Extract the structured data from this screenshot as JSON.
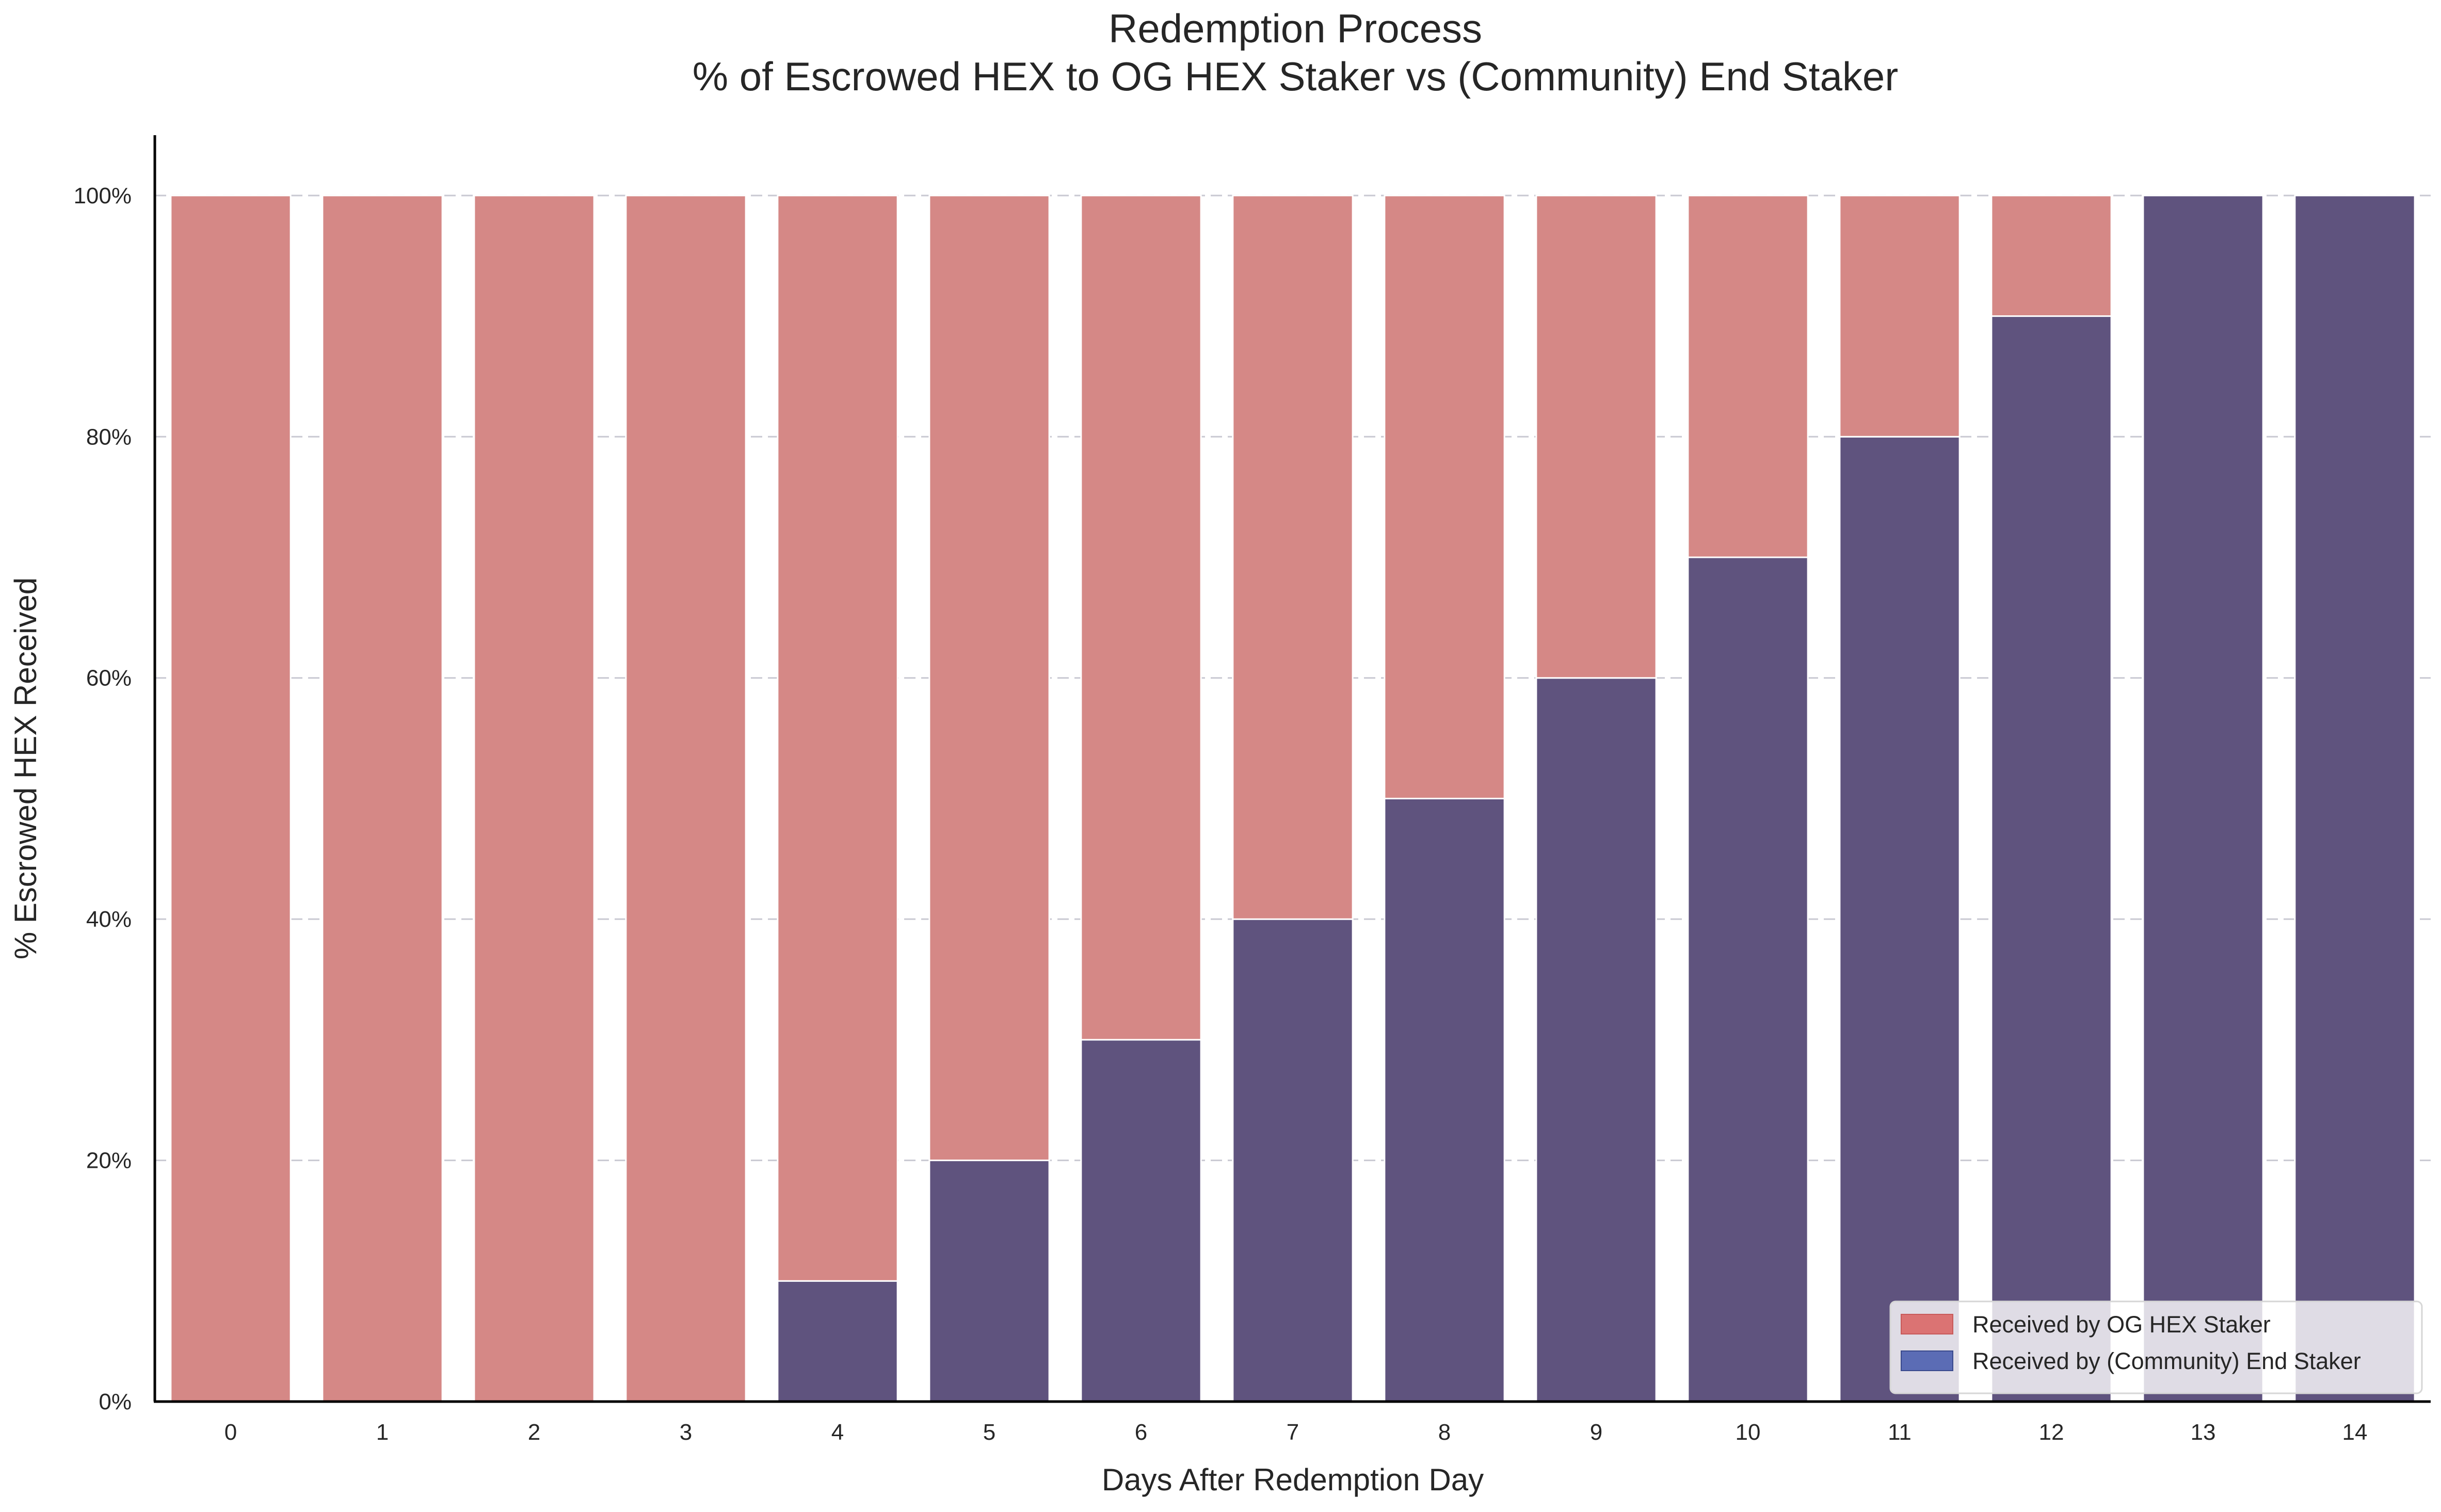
{
  "chart_data": {
    "type": "bar",
    "stacked": true,
    "title": "Redemption Process",
    "subtitle": "% of Escrowed HEX to OG HEX Staker vs (Community) End Staker",
    "xlabel": "Days After Redemption Day",
    "ylabel": "% Escrowed HEX Received",
    "categories": [
      "0",
      "1",
      "2",
      "3",
      "4",
      "5",
      "6",
      "7",
      "8",
      "9",
      "10",
      "11",
      "12",
      "13",
      "14"
    ],
    "ylim": [
      0,
      105
    ],
    "yticks": [
      0,
      20,
      40,
      60,
      80,
      100
    ],
    "ytick_labels": [
      "0%",
      "20%",
      "40%",
      "60%",
      "80%",
      "100%"
    ],
    "grid": "horizontal dashed",
    "legend_position": "bottom-right",
    "series": [
      {
        "name": "Received by (Community) End Staker",
        "color": "#5f537e",
        "legend_color": "#5b6cb5",
        "values": [
          0,
          0,
          0,
          0,
          10,
          20,
          30,
          40,
          50,
          60,
          70,
          80,
          90,
          100,
          100
        ]
      },
      {
        "name": "Received by OG HEX Staker",
        "color": "#d58886",
        "legend_color": "#db7373",
        "values": [
          100,
          100,
          100,
          100,
          90,
          80,
          70,
          60,
          50,
          40,
          30,
          20,
          10,
          0,
          0
        ]
      }
    ]
  }
}
